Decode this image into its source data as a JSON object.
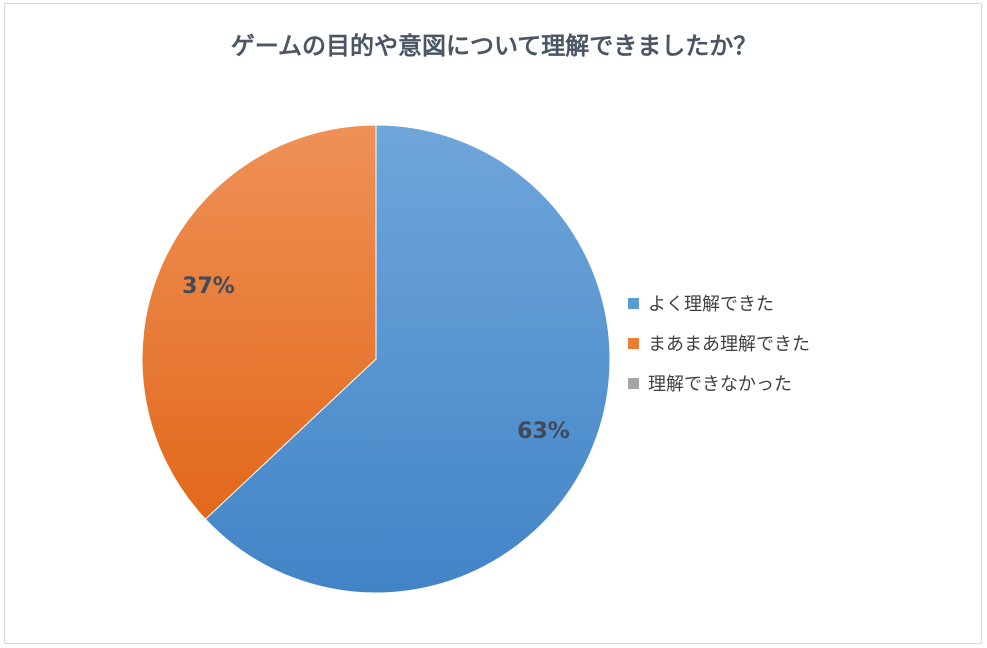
{
  "chart_data": {
    "type": "pie",
    "title": "ゲームの目的や意図について理解できましたか？",
    "categories": [
      "よく理解できた",
      "まあまあ理解できた",
      "理解できなかった"
    ],
    "values": [
      63,
      37,
      0
    ],
    "data_labels": [
      "63%",
      "37%",
      ""
    ],
    "colors": [
      "#5b9bd5",
      "#ed7d31",
      "#a5a5a5"
    ],
    "legend_position": "right",
    "start_angle": "top",
    "direction": "clockwise"
  }
}
